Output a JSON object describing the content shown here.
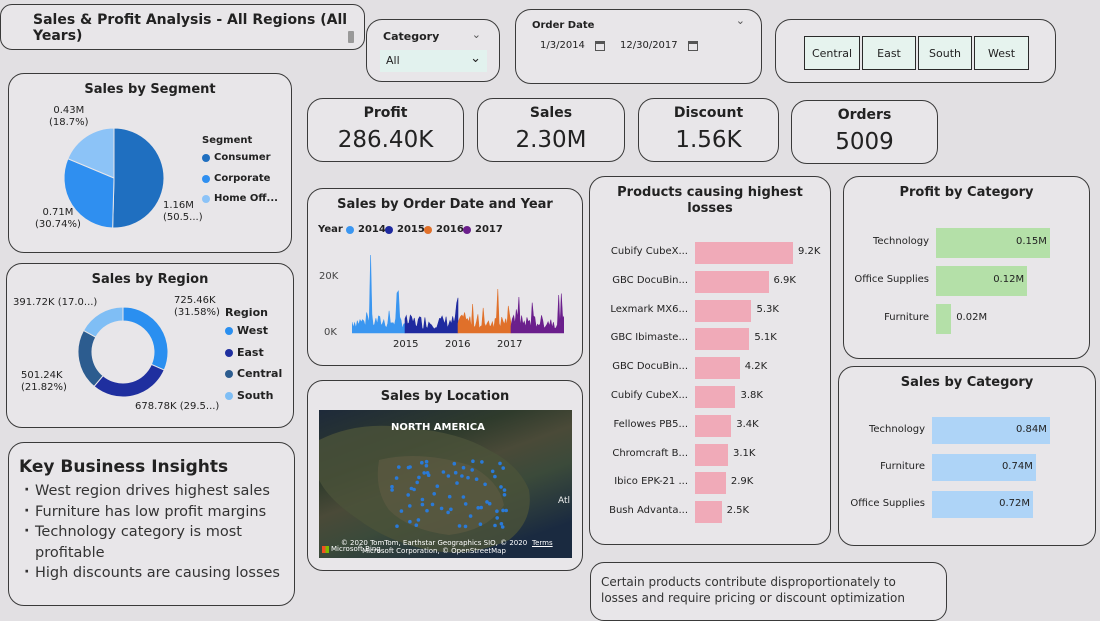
{
  "header": {
    "title": "Sales & Profit Analysis - All Regions (All Years)"
  },
  "filters": {
    "category": {
      "label": "Category",
      "value": "All"
    },
    "order_date": {
      "label": "Order Date",
      "start": "1/3/2014",
      "end": "12/30/2017"
    },
    "regions": [
      "Central",
      "East",
      "South",
      "West"
    ]
  },
  "kpis": [
    {
      "label": "Profit",
      "value": "286.40K"
    },
    {
      "label": "Sales",
      "value": "2.30M"
    },
    {
      "label": "Discount",
      "value": "1.56K"
    },
    {
      "label": "Orders",
      "value": "5009"
    }
  ],
  "sales_by_segment": {
    "title": "Sales by Segment",
    "legend_title": "Segment",
    "segments": [
      {
        "name": "Consumer",
        "value": 1.16,
        "label_value": "1.16M",
        "label_pct": "(50.5...)",
        "color": "#1f6fc0"
      },
      {
        "name": "Corporate",
        "value": 0.71,
        "label_value": "0.71M",
        "label_pct": "(30.74%)",
        "color": "#2f8ff0"
      },
      {
        "name": "Home Off...",
        "value": 0.43,
        "label_value": "0.43M",
        "label_pct": "(18.7%)",
        "color": "#8cc3f7"
      }
    ]
  },
  "sales_by_region": {
    "title": "Sales by Region",
    "legend_title": "Region",
    "regions": [
      {
        "name": "West",
        "value": 725.46,
        "label_value": "725.46K",
        "label_pct": "(31.58%)",
        "color": "#2a8ff0"
      },
      {
        "name": "East",
        "value": 678.78,
        "label_value": "678.78K (29.5...)",
        "label_pct": "",
        "color": "#1f2f9f"
      },
      {
        "name": "Central",
        "value": 501.24,
        "label_value": "501.24K",
        "label_pct": "(21.82%)",
        "color": "#2c5c8f"
      },
      {
        "name": "South",
        "value": 391.72,
        "label_value": "391.72K (17.0...)",
        "label_pct": "",
        "color": "#7fbef5"
      }
    ]
  },
  "insights": {
    "title": "Key Business Insights",
    "items": [
      "West region drives highest sales",
      "Furniture has low profit margins",
      "Technology category is most profitable",
      "High discounts are causing losses"
    ]
  },
  "sales_by_date": {
    "title": "Sales by Order Date and Year",
    "legend_title": "Year",
    "years": [
      {
        "name": "2014",
        "color": "#3a96f0"
      },
      {
        "name": "2015",
        "color": "#1f2a9f"
      },
      {
        "name": "2016",
        "color": "#e0702a"
      },
      {
        "name": "2017",
        "color": "#6b1f8c"
      }
    ],
    "y_ticks": [
      "20K",
      "0K"
    ],
    "x_ticks": [
      "2015",
      "2016",
      "2017"
    ]
  },
  "sales_by_location": {
    "title": "Sales by Location",
    "map_label": "NORTH AMERICA",
    "attribution": "© 2020 TomTom, Earthstar Geographics SIO, © 2020 Microsoft Corporation, © OpenStreetMap",
    "terms": "Terms",
    "bing": "Microsoft Bing",
    "edge_text": "Atl"
  },
  "losses": {
    "title": "Products causing highest losses",
    "color": "#f0aab8",
    "items": [
      {
        "name": "Cubify CubeX...",
        "value": 9.2,
        "label": "9.2K"
      },
      {
        "name": "GBC DocuBin...",
        "value": 6.9,
        "label": "6.9K"
      },
      {
        "name": "Lexmark MX6...",
        "value": 5.3,
        "label": "5.3K"
      },
      {
        "name": "GBC Ibimaste...",
        "value": 5.1,
        "label": "5.1K"
      },
      {
        "name": "GBC DocuBin...",
        "value": 4.2,
        "label": "4.2K"
      },
      {
        "name": "Cubify CubeX...",
        "value": 3.8,
        "label": "3.8K"
      },
      {
        "name": "Fellowes PB5...",
        "value": 3.4,
        "label": "3.4K"
      },
      {
        "name": "Chromcraft B...",
        "value": 3.1,
        "label": "3.1K"
      },
      {
        "name": "Ibico EPK-21 ...",
        "value": 2.9,
        "label": "2.9K"
      },
      {
        "name": "Bush Advanta...",
        "value": 2.5,
        "label": "2.5K"
      }
    ]
  },
  "profit_by_category": {
    "title": "Profit by Category",
    "color": "#b4e0a8",
    "items": [
      {
        "name": "Technology",
        "value": 0.15,
        "label": "0.15M"
      },
      {
        "name": "Office Supplies",
        "value": 0.12,
        "label": "0.12M"
      },
      {
        "name": "Furniture",
        "value": 0.02,
        "label": "0.02M"
      }
    ]
  },
  "sales_by_category": {
    "title": "Sales by Category",
    "color": "#aed4f7",
    "items": [
      {
        "name": "Technology",
        "value": 0.84,
        "label": "0.84M"
      },
      {
        "name": "Furniture",
        "value": 0.74,
        "label": "0.74M"
      },
      {
        "name": "Office Supplies",
        "value": 0.72,
        "label": "0.72M"
      }
    ]
  },
  "note": {
    "text": "Certain products contribute disproportionately to losses and require pricing or discount optimization"
  }
}
